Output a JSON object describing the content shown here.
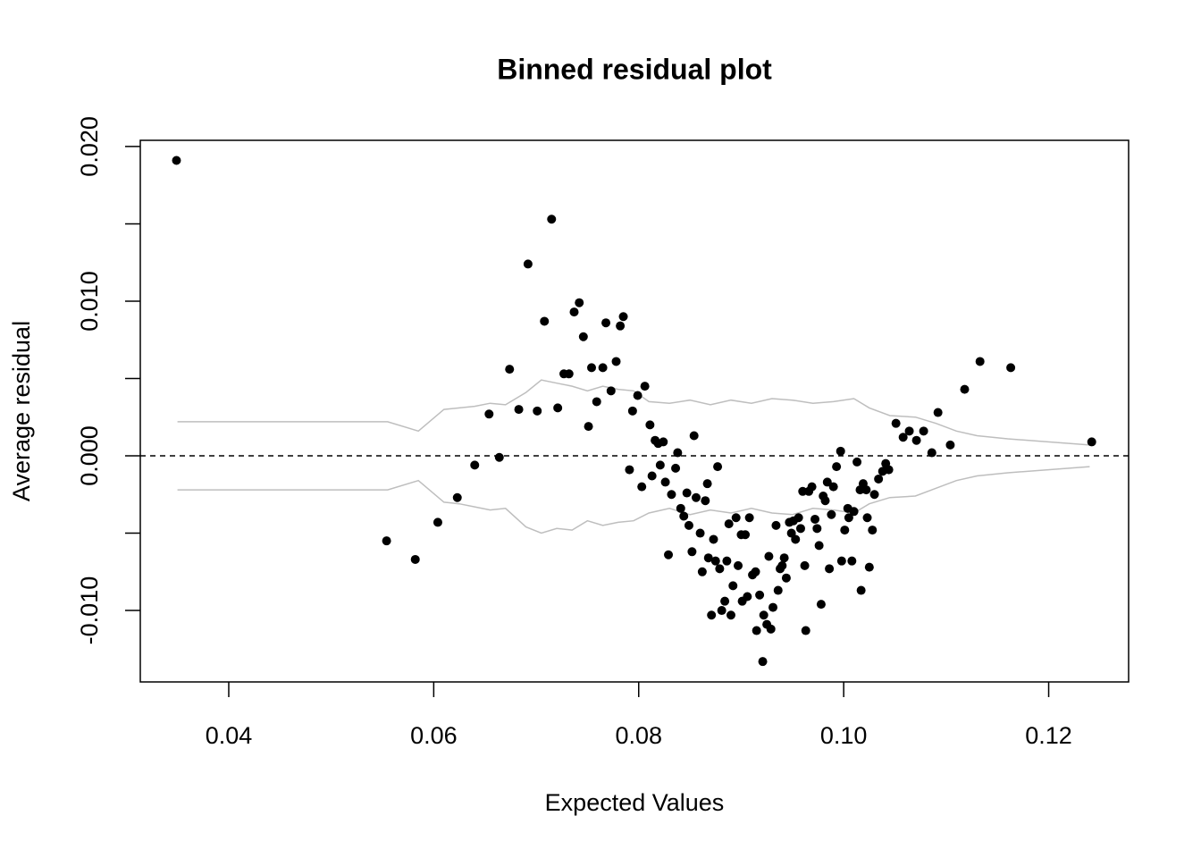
{
  "chart_data": {
    "type": "scatter",
    "title": "Binned residual plot",
    "xlabel": "Expected Values",
    "ylabel": "Average residual",
    "xlim": [
      0.03137,
      0.1278
    ],
    "ylim": [
      -0.01462,
      0.0204
    ],
    "xticks": [
      0.04,
      0.06,
      0.08,
      {
        "value": 0.1,
        "label": "0.10"
      },
      0.12
    ],
    "yticks": [
      {
        "value": 0.02,
        "label": "0.020"
      },
      {
        "value": 0.01,
        "label": "0.010"
      },
      {
        "value": 0,
        "label": "0.000"
      },
      {
        "value": -0.01,
        "label": "-0.010"
      }
    ],
    "yminor_ticks": [
      0.015,
      0.005,
      -0.005
    ],
    "hline": 0,
    "points": {
      "color": "#000000",
      "x": [
        0.0349,
        0.0554,
        0.0582,
        0.0604,
        0.0623,
        0.064,
        0.0654,
        0.0664,
        0.0674,
        0.0683,
        0.0692,
        0.0701,
        0.0708,
        0.0715,
        0.0721,
        0.0727,
        0.0732,
        0.0737,
        0.0742,
        0.0746,
        0.0751,
        0.0754,
        0.0759,
        0.0765,
        0.0768,
        0.0773,
        0.0778,
        0.0782,
        0.0785,
        0.0791,
        0.0794,
        0.0799,
        0.0803,
        0.0806,
        0.0811,
        0.0813,
        0.0816,
        0.0819,
        0.0821,
        0.0824,
        0.0826,
        0.0829,
        0.0832,
        0.0836,
        0.0838,
        0.0841,
        0.0844,
        0.0847,
        0.0849,
        0.0852,
        0.0854,
        0.0856,
        0.086,
        0.0862,
        0.0865,
        0.0867,
        0.0868,
        0.0871,
        0.0873,
        0.0875,
        0.0877,
        0.0879,
        0.0881,
        0.0884,
        0.0886,
        0.0888,
        0.089,
        0.0892,
        0.0895,
        0.0897,
        0.09,
        0.0901,
        0.0904,
        0.0906,
        0.0908,
        0.0911,
        0.0914,
        0.0915,
        0.0918,
        0.0921,
        0.0922,
        0.0925,
        0.0927,
        0.0929,
        0.0931,
        0.0934,
        0.0936,
        0.0938,
        0.094,
        0.0942,
        0.0944,
        0.0947,
        0.0949,
        0.0951,
        0.0953,
        0.0956,
        0.0958,
        0.096,
        0.0962,
        0.0963,
        0.0966,
        0.0969,
        0.0972,
        0.0974,
        0.0976,
        0.0978,
        0.098,
        0.0982,
        0.0984,
        0.0986,
        0.0988,
        0.099,
        0.0993,
        0.0997,
        0.0998,
        0.1001,
        0.1004,
        0.1005,
        0.1008,
        0.101,
        0.1013,
        0.1016,
        0.1017,
        0.1019,
        0.1022,
        0.1023,
        0.1025,
        0.1028,
        0.103,
        0.1034,
        0.1038,
        0.1041,
        0.1044,
        0.1051,
        0.1058,
        0.1064,
        0.1071,
        0.1078,
        0.1086,
        0.1092,
        0.1104,
        0.1118,
        0.1133,
        0.1163,
        0.1242
      ],
      "y": [
        0.0191,
        -0.0055,
        -0.0067,
        -0.0043,
        -0.0027,
        -0.0006,
        0.0027,
        -0.0001,
        0.0056,
        0.003,
        0.0124,
        0.0029,
        0.0087,
        0.0153,
        0.0031,
        0.0053,
        0.0053,
        0.0093,
        0.0099,
        0.0077,
        0.0019,
        0.0057,
        0.0035,
        0.0057,
        0.0086,
        0.0042,
        0.0061,
        0.0084,
        0.009,
        -0.0009,
        0.0029,
        0.0039,
        -0.002,
        0.0045,
        0.002,
        -0.0013,
        0.001,
        0.0008,
        -0.0006,
        0.0009,
        -0.0017,
        -0.0064,
        -0.0025,
        -0.0008,
        0.0002,
        -0.0034,
        -0.0039,
        -0.0024,
        -0.0045,
        -0.0062,
        0.0013,
        -0.0027,
        -0.005,
        -0.0075,
        -0.0029,
        -0.0018,
        -0.0066,
        -0.0103,
        -0.0054,
        -0.0068,
        -0.0007,
        -0.0073,
        -0.01,
        -0.0094,
        -0.0068,
        -0.0044,
        -0.0103,
        -0.0084,
        -0.004,
        -0.0071,
        -0.0051,
        -0.0094,
        -0.0051,
        -0.0091,
        -0.004,
        -0.0077,
        -0.0075,
        -0.0113,
        -0.009,
        -0.0133,
        -0.0103,
        -0.0109,
        -0.0065,
        -0.0112,
        -0.0098,
        -0.0045,
        -0.0087,
        -0.0073,
        -0.0071,
        -0.0066,
        -0.0079,
        -0.0043,
        -0.005,
        -0.0042,
        -0.0054,
        -0.004,
        -0.0047,
        -0.0023,
        -0.0071,
        -0.0113,
        -0.0023,
        -0.002,
        -0.0041,
        -0.0047,
        -0.0058,
        -0.0096,
        -0.0026,
        -0.0029,
        -0.0017,
        -0.0073,
        -0.0038,
        -0.002,
        -0.0007,
        0.0003,
        -0.0068,
        -0.0048,
        -0.0034,
        -0.004,
        -0.0068,
        -0.0036,
        -0.0004,
        -0.0022,
        -0.0087,
        -0.0018,
        -0.0022,
        -0.004,
        -0.0072,
        -0.0048,
        -0.0025,
        -0.0015,
        -0.001,
        -0.0005,
        -0.0009,
        0.0021,
        0.0012,
        0.0016,
        0.001,
        0.0016,
        0.0002,
        0.0028,
        0.0007,
        0.0043,
        0.0061,
        0.0057,
        0.0009
      ]
    },
    "bounds": {
      "color": "#bebebe",
      "x": [
        0.035,
        0.0555,
        0.0585,
        0.061,
        0.0625,
        0.064,
        0.0655,
        0.067,
        0.069,
        0.0705,
        0.072,
        0.0735,
        0.075,
        0.0765,
        0.078,
        0.0795,
        0.081,
        0.083,
        0.085,
        0.087,
        0.089,
        0.091,
        0.093,
        0.095,
        0.097,
        0.099,
        0.101,
        0.1025,
        0.1045,
        0.107,
        0.109,
        0.111,
        0.113,
        0.116,
        0.124
      ],
      "upper": [
        0.0022,
        0.0022,
        0.0016,
        0.003,
        0.0031,
        0.0032,
        0.0034,
        0.0033,
        0.0041,
        0.0049,
        0.0047,
        0.0045,
        0.0042,
        0.0045,
        0.0043,
        0.0042,
        0.0035,
        0.0034,
        0.0036,
        0.0033,
        0.0036,
        0.0034,
        0.0037,
        0.0036,
        0.0034,
        0.0035,
        0.0037,
        0.0031,
        0.0026,
        0.0025,
        0.0021,
        0.0016,
        0.0013,
        0.0011,
        0.0007
      ],
      "lower": [
        -0.0022,
        -0.0022,
        -0.0016,
        -0.003,
        -0.0031,
        -0.0033,
        -0.0035,
        -0.0034,
        -0.0046,
        -0.005,
        -0.0047,
        -0.0048,
        -0.0042,
        -0.0045,
        -0.0043,
        -0.0042,
        -0.0037,
        -0.0034,
        -0.0038,
        -0.0035,
        -0.0037,
        -0.0034,
        -0.0037,
        -0.0038,
        -0.0034,
        -0.0035,
        -0.0037,
        -0.0031,
        -0.0027,
        -0.0026,
        -0.0021,
        -0.0016,
        -0.0013,
        -0.0011,
        -0.0007
      ]
    }
  }
}
